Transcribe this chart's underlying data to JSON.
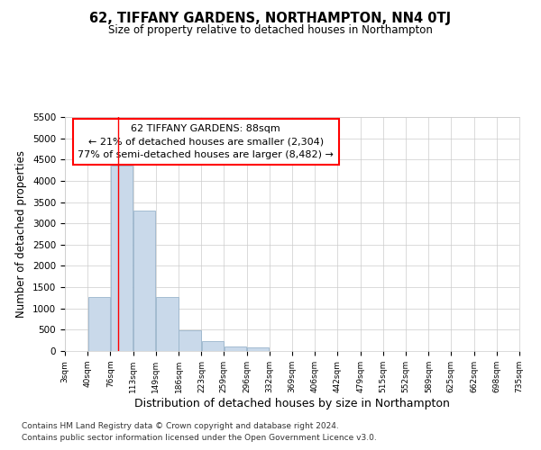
{
  "title": "62, TIFFANY GARDENS, NORTHAMPTON, NN4 0TJ",
  "subtitle": "Size of property relative to detached houses in Northampton",
  "xlabel": "Distribution of detached houses by size in Northampton",
  "ylabel": "Number of detached properties",
  "footer1": "Contains HM Land Registry data © Crown copyright and database right 2024.",
  "footer2": "Contains public sector information licensed under the Open Government Licence v3.0.",
  "annotation_title": "62 TIFFANY GARDENS: 88sqm",
  "annotation_line1": "← 21% of detached houses are smaller (2,304)",
  "annotation_line2": "77% of semi-detached houses are larger (8,482) →",
  "bar_color": "#c9d9ea",
  "bar_edge_color": "#9ab5cc",
  "red_line_x": 88,
  "ylim": [
    0,
    5500
  ],
  "yticks": [
    0,
    500,
    1000,
    1500,
    2000,
    2500,
    3000,
    3500,
    4000,
    4500,
    5000,
    5500
  ],
  "bin_edges": [
    3,
    40,
    76,
    113,
    149,
    186,
    223,
    259,
    296,
    332,
    369,
    406,
    442,
    479,
    515,
    552,
    589,
    625,
    662,
    698,
    735
  ],
  "bar_heights": [
    0,
    1270,
    4350,
    3300,
    1270,
    490,
    240,
    105,
    75,
    0,
    0,
    0,
    0,
    0,
    0,
    0,
    0,
    0,
    0,
    0
  ],
  "tick_labels": [
    "3sqm",
    "40sqm",
    "76sqm",
    "113sqm",
    "149sqm",
    "186sqm",
    "223sqm",
    "259sqm",
    "296sqm",
    "332sqm",
    "369sqm",
    "406sqm",
    "442sqm",
    "479sqm",
    "515sqm",
    "552sqm",
    "589sqm",
    "625sqm",
    "662sqm",
    "698sqm",
    "735sqm"
  ],
  "background_color": "#ffffff",
  "grid_color": "#cccccc"
}
